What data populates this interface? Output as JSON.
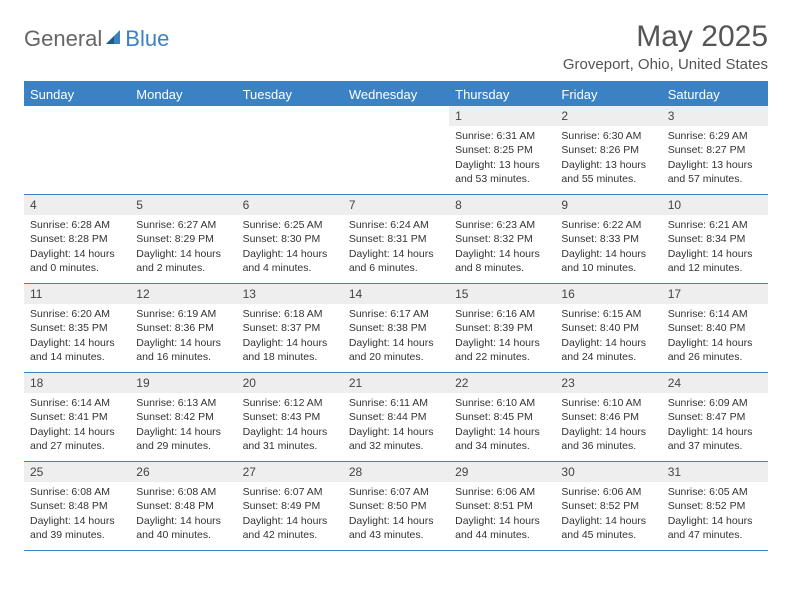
{
  "logo": {
    "text_a": "General",
    "text_b": "Blue"
  },
  "title": "May 2025",
  "subtitle": "Groveport, Ohio, United States",
  "colors": {
    "accent": "#3b82c4",
    "day_num_bg": "#eeeeee",
    "text": "#333333",
    "header_text": "#555555"
  },
  "weekdays": [
    "Sunday",
    "Monday",
    "Tuesday",
    "Wednesday",
    "Thursday",
    "Friday",
    "Saturday"
  ],
  "weeks": [
    [
      null,
      null,
      null,
      null,
      {
        "n": "1",
        "sr": "Sunrise: 6:31 AM",
        "ss": "Sunset: 8:25 PM",
        "dl": "Daylight: 13 hours and 53 minutes."
      },
      {
        "n": "2",
        "sr": "Sunrise: 6:30 AM",
        "ss": "Sunset: 8:26 PM",
        "dl": "Daylight: 13 hours and 55 minutes."
      },
      {
        "n": "3",
        "sr": "Sunrise: 6:29 AM",
        "ss": "Sunset: 8:27 PM",
        "dl": "Daylight: 13 hours and 57 minutes."
      }
    ],
    [
      {
        "n": "4",
        "sr": "Sunrise: 6:28 AM",
        "ss": "Sunset: 8:28 PM",
        "dl": "Daylight: 14 hours and 0 minutes."
      },
      {
        "n": "5",
        "sr": "Sunrise: 6:27 AM",
        "ss": "Sunset: 8:29 PM",
        "dl": "Daylight: 14 hours and 2 minutes."
      },
      {
        "n": "6",
        "sr": "Sunrise: 6:25 AM",
        "ss": "Sunset: 8:30 PM",
        "dl": "Daylight: 14 hours and 4 minutes."
      },
      {
        "n": "7",
        "sr": "Sunrise: 6:24 AM",
        "ss": "Sunset: 8:31 PM",
        "dl": "Daylight: 14 hours and 6 minutes."
      },
      {
        "n": "8",
        "sr": "Sunrise: 6:23 AM",
        "ss": "Sunset: 8:32 PM",
        "dl": "Daylight: 14 hours and 8 minutes."
      },
      {
        "n": "9",
        "sr": "Sunrise: 6:22 AM",
        "ss": "Sunset: 8:33 PM",
        "dl": "Daylight: 14 hours and 10 minutes."
      },
      {
        "n": "10",
        "sr": "Sunrise: 6:21 AM",
        "ss": "Sunset: 8:34 PM",
        "dl": "Daylight: 14 hours and 12 minutes."
      }
    ],
    [
      {
        "n": "11",
        "sr": "Sunrise: 6:20 AM",
        "ss": "Sunset: 8:35 PM",
        "dl": "Daylight: 14 hours and 14 minutes."
      },
      {
        "n": "12",
        "sr": "Sunrise: 6:19 AM",
        "ss": "Sunset: 8:36 PM",
        "dl": "Daylight: 14 hours and 16 minutes."
      },
      {
        "n": "13",
        "sr": "Sunrise: 6:18 AM",
        "ss": "Sunset: 8:37 PM",
        "dl": "Daylight: 14 hours and 18 minutes."
      },
      {
        "n": "14",
        "sr": "Sunrise: 6:17 AM",
        "ss": "Sunset: 8:38 PM",
        "dl": "Daylight: 14 hours and 20 minutes."
      },
      {
        "n": "15",
        "sr": "Sunrise: 6:16 AM",
        "ss": "Sunset: 8:39 PM",
        "dl": "Daylight: 14 hours and 22 minutes."
      },
      {
        "n": "16",
        "sr": "Sunrise: 6:15 AM",
        "ss": "Sunset: 8:40 PM",
        "dl": "Daylight: 14 hours and 24 minutes."
      },
      {
        "n": "17",
        "sr": "Sunrise: 6:14 AM",
        "ss": "Sunset: 8:40 PM",
        "dl": "Daylight: 14 hours and 26 minutes."
      }
    ],
    [
      {
        "n": "18",
        "sr": "Sunrise: 6:14 AM",
        "ss": "Sunset: 8:41 PM",
        "dl": "Daylight: 14 hours and 27 minutes."
      },
      {
        "n": "19",
        "sr": "Sunrise: 6:13 AM",
        "ss": "Sunset: 8:42 PM",
        "dl": "Daylight: 14 hours and 29 minutes."
      },
      {
        "n": "20",
        "sr": "Sunrise: 6:12 AM",
        "ss": "Sunset: 8:43 PM",
        "dl": "Daylight: 14 hours and 31 minutes."
      },
      {
        "n": "21",
        "sr": "Sunrise: 6:11 AM",
        "ss": "Sunset: 8:44 PM",
        "dl": "Daylight: 14 hours and 32 minutes."
      },
      {
        "n": "22",
        "sr": "Sunrise: 6:10 AM",
        "ss": "Sunset: 8:45 PM",
        "dl": "Daylight: 14 hours and 34 minutes."
      },
      {
        "n": "23",
        "sr": "Sunrise: 6:10 AM",
        "ss": "Sunset: 8:46 PM",
        "dl": "Daylight: 14 hours and 36 minutes."
      },
      {
        "n": "24",
        "sr": "Sunrise: 6:09 AM",
        "ss": "Sunset: 8:47 PM",
        "dl": "Daylight: 14 hours and 37 minutes."
      }
    ],
    [
      {
        "n": "25",
        "sr": "Sunrise: 6:08 AM",
        "ss": "Sunset: 8:48 PM",
        "dl": "Daylight: 14 hours and 39 minutes."
      },
      {
        "n": "26",
        "sr": "Sunrise: 6:08 AM",
        "ss": "Sunset: 8:48 PM",
        "dl": "Daylight: 14 hours and 40 minutes."
      },
      {
        "n": "27",
        "sr": "Sunrise: 6:07 AM",
        "ss": "Sunset: 8:49 PM",
        "dl": "Daylight: 14 hours and 42 minutes."
      },
      {
        "n": "28",
        "sr": "Sunrise: 6:07 AM",
        "ss": "Sunset: 8:50 PM",
        "dl": "Daylight: 14 hours and 43 minutes."
      },
      {
        "n": "29",
        "sr": "Sunrise: 6:06 AM",
        "ss": "Sunset: 8:51 PM",
        "dl": "Daylight: 14 hours and 44 minutes."
      },
      {
        "n": "30",
        "sr": "Sunrise: 6:06 AM",
        "ss": "Sunset: 8:52 PM",
        "dl": "Daylight: 14 hours and 45 minutes."
      },
      {
        "n": "31",
        "sr": "Sunrise: 6:05 AM",
        "ss": "Sunset: 8:52 PM",
        "dl": "Daylight: 14 hours and 47 minutes."
      }
    ]
  ]
}
